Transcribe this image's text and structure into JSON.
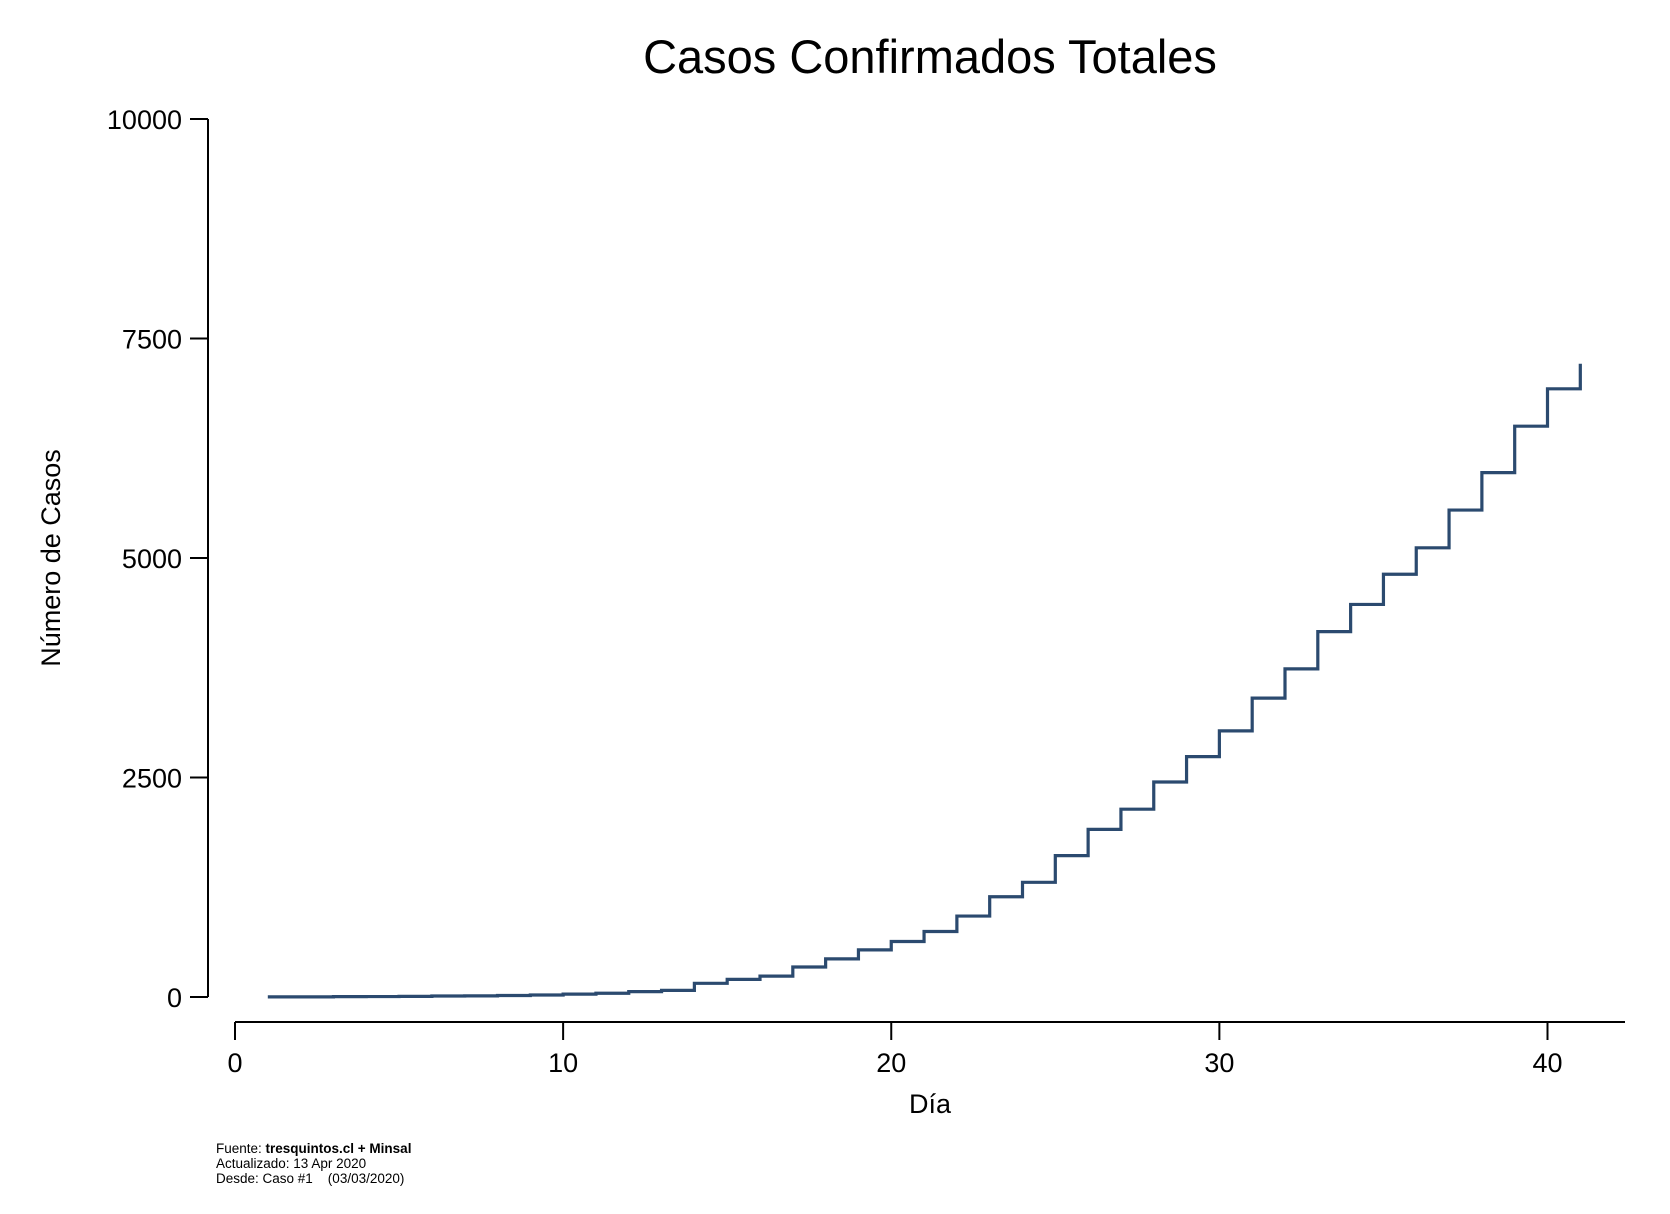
{
  "chart_data": {
    "type": "line",
    "step": true,
    "title": "Casos Confirmados Totales",
    "xlabel": "Día",
    "ylabel": "Número de Casos",
    "xlim": [
      0,
      45
    ],
    "ylim": [
      0,
      10000
    ],
    "xticks": [
      0,
      10,
      20,
      30,
      40
    ],
    "yticks": [
      0,
      2500,
      5000,
      7500,
      10000
    ],
    "grid": false,
    "line_color": "#2b4a6f",
    "series": [
      {
        "x": [
          1,
          2,
          3,
          4,
          5,
          6,
          7,
          8,
          9,
          10,
          11,
          12,
          13,
          14,
          15,
          16,
          17,
          18,
          19,
          20,
          21,
          22,
          23,
          24,
          25,
          26,
          27,
          28,
          29,
          30,
          31,
          32,
          33,
          34,
          35,
          36,
          37,
          38,
          39,
          40,
          41
        ],
        "values": [
          1,
          1,
          4,
          5,
          7,
          11,
          13,
          17,
          23,
          33,
          43,
          61,
          75,
          156,
          201,
          238,
          342,
          434,
          537,
          632,
          746,
          922,
          1142,
          1306,
          1610,
          1909,
          2139,
          2449,
          2738,
          3031,
          3404,
          3737,
          4161,
          4471,
          4815,
          5116,
          5546,
          5972,
          6501,
          6927,
          7213
        ]
      }
    ]
  },
  "footer": {
    "source_label": "Fuente: ",
    "source_bold": "tresquintos.cl + Minsal",
    "updated": "Actualizado: 13 Apr 2020",
    "since": "Desde: Caso #1    (03/03/2020)"
  }
}
